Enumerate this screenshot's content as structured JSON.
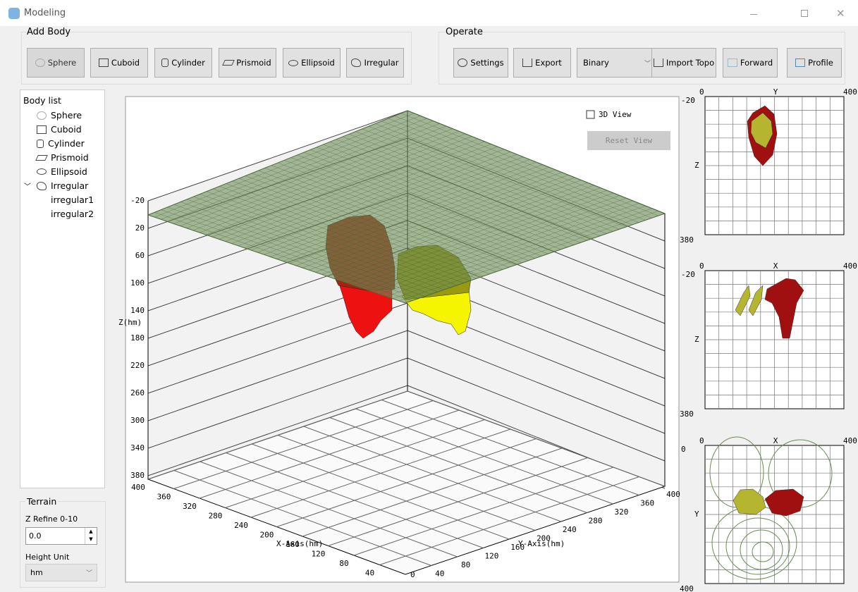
{
  "window": {
    "title": "Modeling"
  },
  "add_body": {
    "title": "Add Body",
    "buttons": [
      "Sphere",
      "Cuboid",
      "Cylinder",
      "Prismoid",
      "Ellipsoid",
      "Irregular"
    ]
  },
  "operate": {
    "title": "Operate",
    "settings": "Settings",
    "export": "Export",
    "format": "Binary",
    "import_topo": "Import Topo",
    "forward": "Forward",
    "profile": "Profile"
  },
  "body_list": {
    "title": "Body list",
    "items": [
      "Sphere",
      "Cuboid",
      "Cylinder",
      "Prismoid",
      "Ellipsoid",
      "Irregular"
    ],
    "children": [
      "irregular1",
      "irregular2"
    ]
  },
  "terrain": {
    "title": "Terrain",
    "z_refine_label": "Z Refine 0-10",
    "z_refine": "0.0",
    "height_unit_label": "Height Unit",
    "height_unit": "hm"
  },
  "view3d": {
    "checkbox": "3D View",
    "reset": "Reset View",
    "z_label": "Z(hm)",
    "z_ticks": [
      -20,
      20,
      60,
      100,
      140,
      180,
      220,
      260,
      300,
      340,
      380
    ],
    "x_label": "X-Axis(hm)",
    "x_ticks": [
      400,
      360,
      320,
      280,
      240,
      200,
      160,
      120,
      80,
      40
    ],
    "y_label": "Y-Axis(hm)",
    "y_ticks": [
      40,
      80,
      120,
      160,
      200,
      240,
      280,
      320,
      360,
      400
    ],
    "origin": "0"
  },
  "profiles": [
    {
      "left": "0",
      "axis": "Y",
      "right": "400",
      "top": "-20",
      "side": "Z",
      "bottom": "380"
    },
    {
      "left": "0",
      "axis": "X",
      "right": "400",
      "top": "-20",
      "side": "Z",
      "bottom": "380"
    },
    {
      "left": "0",
      "axis": "X",
      "right": "400",
      "top": "0",
      "side": "Y",
      "bottom": "400"
    }
  ]
}
